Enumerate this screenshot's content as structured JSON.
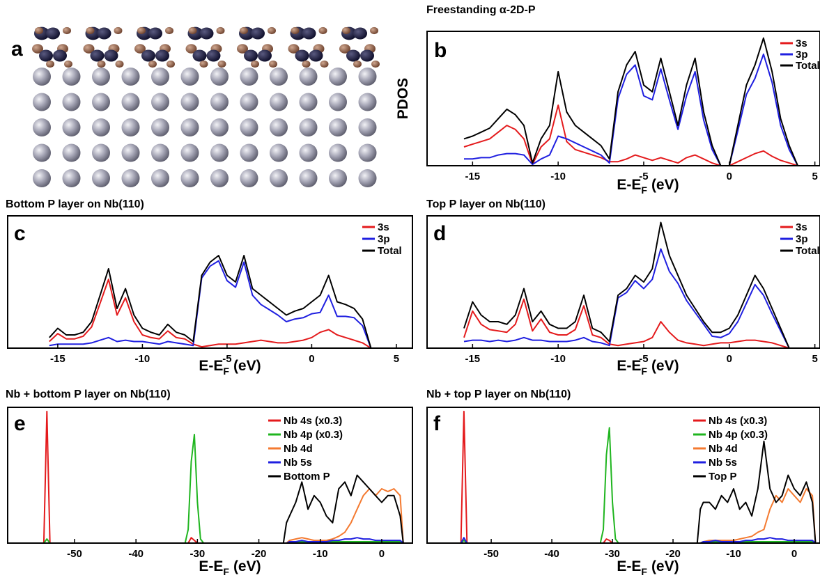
{
  "panel_a": {
    "label": "a"
  },
  "chart_data": [
    {
      "type": "line",
      "label": "b",
      "title": "Freestanding α-2D-P",
      "ylabel": "PDOS",
      "xlabel": {
        "main": "E-E",
        "sub": "F",
        "unit": "(eV)"
      },
      "xlim": [
        -17.7,
        5.3
      ],
      "ylim": [
        0,
        100
      ],
      "xticks": [
        -15,
        -10,
        -5,
        0,
        5
      ],
      "legend": "upper right",
      "x": [
        -15.5,
        -15,
        -14.5,
        -14,
        -13.5,
        -13,
        -12.5,
        -12,
        -11.5,
        -11,
        -10.5,
        -10,
        -9.5,
        -9,
        -8.5,
        -8,
        -7.5,
        -7,
        -6.5,
        -6,
        -5.5,
        -5,
        -4.5,
        -4,
        -3.5,
        -3,
        -2.5,
        -2,
        -1.5,
        -1,
        -0.5,
        0,
        0.5,
        1,
        1.5,
        2,
        2.5,
        3,
        3.5,
        4
      ],
      "series": [
        {
          "name": "3s",
          "color": "#e41a1c",
          "values": [
            14,
            16,
            18,
            20,
            25,
            30,
            27,
            20,
            1,
            14,
            20,
            45,
            18,
            12,
            10,
            8,
            6,
            3,
            3,
            5,
            8,
            6,
            4,
            6,
            4,
            2,
            6,
            8,
            5,
            2,
            0,
            0,
            3,
            6,
            9,
            11,
            7,
            4,
            2,
            0
          ]
        },
        {
          "name": "3p",
          "color": "#1f1fe0",
          "values": [
            5,
            5,
            6,
            6,
            8,
            9,
            9,
            8,
            1,
            5,
            8,
            22,
            20,
            17,
            14,
            11,
            8,
            2,
            50,
            68,
            75,
            52,
            49,
            72,
            49,
            27,
            52,
            70,
            34,
            12,
            0,
            0,
            26,
            53,
            65,
            83,
            62,
            30,
            12,
            0
          ]
        },
        {
          "name": "Total",
          "color": "#000000",
          "values": [
            20,
            22,
            25,
            28,
            35,
            42,
            38,
            30,
            2,
            20,
            30,
            70,
            40,
            30,
            25,
            20,
            15,
            5,
            55,
            75,
            85,
            60,
            55,
            80,
            55,
            30,
            60,
            80,
            40,
            15,
            0,
            0,
            30,
            60,
            75,
            95,
            70,
            35,
            15,
            0
          ]
        }
      ]
    },
    {
      "type": "line",
      "label": "c",
      "title": "Bottom P layer on Nb(110)",
      "xlabel": {
        "main": "E-E",
        "sub": "F",
        "unit": "(eV)"
      },
      "xlim": [
        -18,
        5.95
      ],
      "ylim": [
        0,
        100
      ],
      "xticks": [
        -15,
        -10,
        -5,
        0,
        5
      ],
      "legend": "upper right",
      "x": [
        -15.5,
        -15,
        -14.5,
        -14,
        -13.5,
        -13,
        -12.5,
        -12,
        -11.5,
        -11,
        -10.5,
        -10,
        -9.5,
        -9,
        -8.5,
        -8,
        -7.5,
        -7,
        -6.5,
        -6,
        -5.5,
        -5,
        -4.5,
        -4,
        -3.5,
        -3,
        -2.5,
        -2,
        -1.5,
        -1,
        -0.5,
        0,
        0.5,
        1,
        1.5,
        2,
        2.5,
        3,
        3.5,
        4
      ],
      "series": [
        {
          "name": "3s",
          "color": "#e41a1c",
          "values": [
            5,
            11,
            7,
            7,
            9,
            16,
            34,
            52,
            25,
            38,
            20,
            10,
            8,
            7,
            13,
            8,
            7,
            3,
            1,
            2,
            3,
            3,
            3,
            4,
            5,
            6,
            5,
            4,
            4,
            5,
            6,
            8,
            12,
            14,
            10,
            8,
            6,
            4,
            0,
            0
          ]
        },
        {
          "name": "3p",
          "color": "#1f1fe0",
          "values": [
            2,
            3,
            3,
            3,
            3,
            4,
            6,
            8,
            5,
            6,
            5,
            5,
            4,
            3,
            5,
            4,
            3,
            2,
            53,
            62,
            66,
            51,
            46,
            65,
            40,
            33,
            29,
            25,
            20,
            22,
            23,
            26,
            27,
            40,
            24,
            24,
            23,
            17,
            0,
            0
          ]
        },
        {
          "name": "Total",
          "color": "#000000",
          "values": [
            8,
            15,
            10,
            10,
            12,
            20,
            40,
            60,
            30,
            45,
            25,
            15,
            12,
            10,
            18,
            12,
            10,
            5,
            55,
            65,
            70,
            55,
            50,
            70,
            45,
            40,
            35,
            30,
            25,
            28,
            30,
            35,
            40,
            55,
            35,
            33,
            30,
            22,
            0,
            0
          ]
        }
      ]
    },
    {
      "type": "line",
      "label": "d",
      "title": "Top P layer on Nb(110)",
      "xlabel": {
        "main": "E-E",
        "sub": "F",
        "unit": "(eV)"
      },
      "xlim": [
        -17.7,
        5.3
      ],
      "ylim": [
        0,
        100
      ],
      "xticks": [
        -15,
        -10,
        -5,
        0,
        5
      ],
      "legend": "upper right",
      "x": [
        -15.5,
        -15,
        -14.5,
        -14,
        -13.5,
        -13,
        -12.5,
        -12,
        -11.5,
        -11,
        -10.5,
        -10,
        -9.5,
        -9,
        -8.5,
        -8,
        -7.5,
        -7,
        -6.5,
        -6,
        -5.5,
        -5,
        -4.5,
        -4,
        -3.5,
        -3,
        -2.5,
        -2,
        -1.5,
        -1,
        -0.5,
        0,
        0.5,
        1,
        1.5,
        2,
        2.5,
        3,
        3.5,
        4
      ],
      "series": [
        {
          "name": "3s",
          "color": "#e41a1c",
          "values": [
            8,
            28,
            18,
            14,
            13,
            12,
            18,
            37,
            13,
            22,
            12,
            10,
            10,
            14,
            32,
            10,
            8,
            3,
            2,
            3,
            4,
            5,
            8,
            20,
            12,
            6,
            4,
            3,
            2,
            3,
            4,
            4,
            5,
            6,
            6,
            5,
            4,
            2,
            0,
            0
          ]
        },
        {
          "name": "3p",
          "color": "#1f1fe0",
          "values": [
            5,
            6,
            6,
            5,
            6,
            5,
            6,
            8,
            6,
            6,
            5,
            5,
            5,
            6,
            8,
            5,
            4,
            2,
            38,
            42,
            51,
            45,
            52,
            75,
            58,
            49,
            36,
            27,
            18,
            9,
            8,
            11,
            20,
            34,
            48,
            40,
            26,
            13,
            0,
            0
          ]
        },
        {
          "name": "Total",
          "color": "#000000",
          "values": [
            15,
            35,
            25,
            20,
            20,
            18,
            25,
            45,
            20,
            28,
            18,
            15,
            15,
            20,
            40,
            15,
            12,
            5,
            40,
            45,
            55,
            50,
            60,
            95,
            70,
            55,
            40,
            30,
            20,
            12,
            12,
            15,
            25,
            40,
            55,
            45,
            30,
            15,
            0,
            0
          ]
        }
      ]
    },
    {
      "type": "line",
      "label": "e",
      "title": "Nb + bottom P layer on Nb(110)",
      "xlabel": {
        "main": "E-E",
        "sub": "F",
        "unit": "(eV)"
      },
      "xlim": [
        -61,
        5
      ],
      "ylim": [
        0,
        100
      ],
      "xticks": [
        -50,
        -40,
        -30,
        -20,
        -10,
        0
      ],
      "legend": "upper right",
      "x": [
        -60,
        -56,
        -55,
        -54.5,
        -54,
        -53,
        -40,
        -32,
        -31.5,
        -31,
        -30.5,
        -30,
        -29.5,
        -29,
        -20,
        -16,
        -15.5,
        -15,
        -14,
        -13,
        -12,
        -11,
        -10,
        -9,
        -8,
        -7,
        -6,
        -5,
        -4,
        -3,
        -2,
        -1,
        0,
        1,
        2,
        3,
        3.5,
        4
      ],
      "series": [
        {
          "name": "Nb 4s (x0.3)",
          "color": "#e41a1c",
          "values": [
            0,
            0,
            0,
            97,
            0,
            0,
            0,
            0,
            0,
            4,
            2,
            0,
            0,
            0,
            0,
            0,
            0,
            1,
            1,
            1,
            1,
            1,
            1,
            1,
            1,
            1,
            1,
            1,
            1,
            1,
            1,
            1,
            1,
            1,
            1,
            1,
            0,
            0
          ]
        },
        {
          "name": "Nb 4p (x0.3)",
          "color": "#1fb51f",
          "values": [
            0,
            0,
            0,
            3,
            0,
            0,
            0,
            0,
            10,
            60,
            80,
            30,
            3,
            0,
            0,
            0,
            0,
            1,
            1,
            1,
            1,
            1,
            1,
            1,
            1,
            1,
            1,
            1,
            1,
            1,
            1,
            1,
            1,
            1,
            1,
            1,
            0,
            0
          ]
        },
        {
          "name": "Nb 4d",
          "color": "#f47a30",
          "values": [
            0,
            0,
            0,
            0,
            0,
            0,
            0,
            0,
            0,
            0,
            0,
            0,
            0,
            0,
            0,
            0,
            0,
            2,
            3,
            4,
            3,
            2,
            2,
            2,
            3,
            5,
            8,
            15,
            25,
            35,
            40,
            35,
            40,
            38,
            40,
            35,
            0,
            0
          ]
        },
        {
          "name": "Nb 5s",
          "color": "#1f1fe0",
          "values": [
            0,
            0,
            0,
            0,
            0,
            0,
            0,
            0,
            0,
            0,
            0,
            0,
            0,
            0,
            0,
            0,
            0,
            1,
            1,
            2,
            1,
            1,
            1,
            1,
            2,
            2,
            3,
            3,
            4,
            3,
            3,
            2,
            2,
            2,
            2,
            2,
            0,
            0
          ]
        },
        {
          "name": "Bottom P",
          "color": "#000000",
          "values": [
            0,
            0,
            0,
            0,
            0,
            0,
            0,
            0,
            0,
            0,
            0,
            0,
            0,
            0,
            0,
            0,
            15,
            20,
            30,
            45,
            25,
            35,
            30,
            20,
            15,
            40,
            45,
            35,
            50,
            45,
            40,
            35,
            30,
            35,
            35,
            20,
            0,
            0
          ]
        }
      ]
    },
    {
      "type": "line",
      "label": "f",
      "title": "Nb + top P layer on Nb(110)",
      "xlabel": {
        "main": "E-E",
        "sub": "F",
        "unit": "(eV)"
      },
      "xlim": [
        -60.7,
        4.25
      ],
      "ylim": [
        0,
        100
      ],
      "xticks": [
        -50,
        -40,
        -30,
        -20,
        -10,
        0
      ],
      "legend": "upper right",
      "x": [
        -60,
        -56,
        -55,
        -54.5,
        -54,
        -53,
        -40,
        -32,
        -31.5,
        -31,
        -30.5,
        -30,
        -29.5,
        -29,
        -20,
        -16,
        -15.5,
        -15,
        -14,
        -13,
        -12,
        -11,
        -10,
        -9,
        -8,
        -7,
        -6,
        -5,
        -4,
        -3,
        -2,
        -1,
        0,
        1,
        2,
        3,
        3.5,
        4
      ],
      "series": [
        {
          "name": "Nb 4s (x0.3)",
          "color": "#e41a1c",
          "values": [
            0,
            0,
            0,
            97,
            0,
            0,
            0,
            0,
            0,
            3,
            2,
            0,
            0,
            0,
            0,
            0,
            0,
            1,
            1,
            1,
            1,
            1,
            1,
            1,
            1,
            1,
            1,
            1,
            1,
            1,
            1,
            1,
            1,
            1,
            1,
            1,
            0,
            0
          ]
        },
        {
          "name": "Nb 4p (x0.3)",
          "color": "#1fb51f",
          "values": [
            0,
            0,
            0,
            2,
            0,
            0,
            0,
            0,
            10,
            65,
            85,
            30,
            3,
            0,
            0,
            0,
            0,
            1,
            1,
            1,
            1,
            1,
            1,
            1,
            1,
            1,
            1,
            1,
            1,
            1,
            1,
            1,
            1,
            1,
            1,
            1,
            0,
            0
          ]
        },
        {
          "name": "Nb 4d",
          "color": "#f47a30",
          "values": [
            0,
            0,
            0,
            0,
            0,
            0,
            0,
            0,
            0,
            0,
            0,
            0,
            0,
            0,
            0,
            0,
            0,
            1,
            2,
            2,
            2,
            2,
            2,
            3,
            4,
            5,
            8,
            10,
            25,
            35,
            30,
            40,
            35,
            30,
            40,
            35,
            0,
            0
          ]
        },
        {
          "name": "Nb 5s",
          "color": "#1f1fe0",
          "values": [
            0,
            0,
            0,
            4,
            0,
            0,
            0,
            0,
            0,
            0,
            0,
            0,
            0,
            0,
            0,
            0,
            0,
            1,
            1,
            2,
            1,
            1,
            1,
            1,
            2,
            2,
            3,
            3,
            4,
            3,
            3,
            2,
            2,
            2,
            2,
            2,
            0,
            0
          ]
        },
        {
          "name": "Top P",
          "color": "#000000",
          "values": [
            0,
            0,
            0,
            0,
            0,
            0,
            0,
            0,
            0,
            0,
            0,
            0,
            0,
            0,
            0,
            0,
            25,
            30,
            30,
            25,
            35,
            30,
            40,
            25,
            30,
            20,
            40,
            75,
            40,
            30,
            35,
            50,
            40,
            35,
            45,
            30,
            0,
            0
          ]
        }
      ]
    }
  ]
}
